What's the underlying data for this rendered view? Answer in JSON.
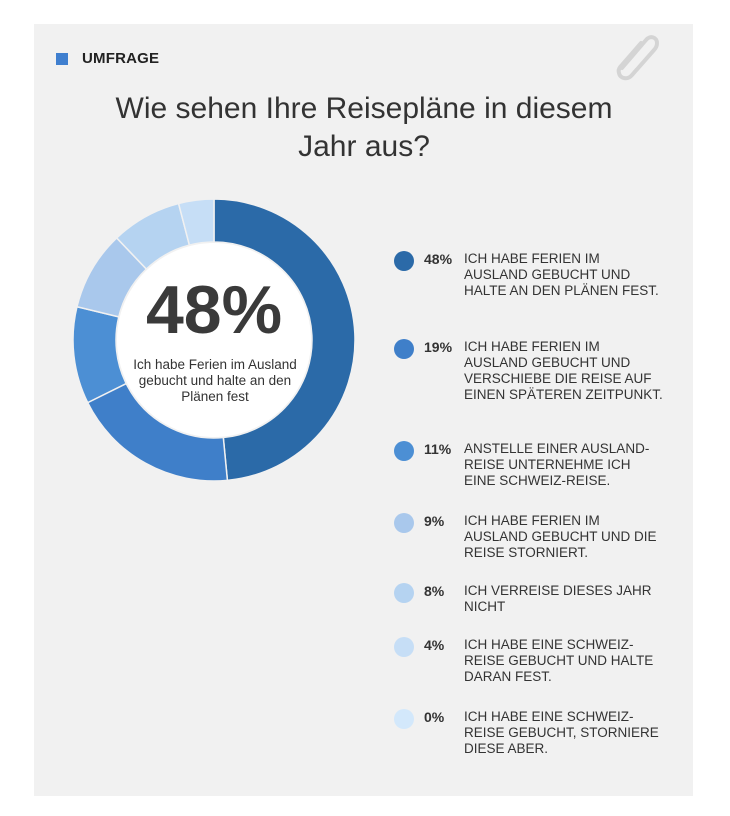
{
  "header": {
    "tag": "UMFRAGE",
    "title_line1": "Wie sehen Ihre Reisepläne in diesem",
    "title_line2": "Jahr aus?",
    "tag_color": "#3f7fcf"
  },
  "center": {
    "value": "48%",
    "caption": "Ich habe Ferien im Ausland gebucht und halte an den Plänen fest"
  },
  "chart_data": {
    "type": "pie",
    "title": "Wie sehen Ihre Reisepläne in diesem Jahr aus?",
    "slices": [
      {
        "value": 48,
        "label": "48%",
        "text": "ICH HABE FERIEN IM AUSLAND GEBUCHT UND HALTE AN DEN PLÄNEN FEST.",
        "color": "#2b6aa8"
      },
      {
        "value": 19,
        "label": "19%",
        "text": "ICH HABE FERIEN IM AUSLAND GEBUCHT UND VERSCHIEBE DIE REISE AUF EINEN SPÄTEREN ZEITPUNKT.",
        "color": "#3f7fc9"
      },
      {
        "value": 11,
        "label": "11%",
        "text": "ANSTELLE EINER AUSLAND-REISE UNTERNEHME ICH EINE SCHWEIZ-REISE.",
        "color": "#4c8fd4"
      },
      {
        "value": 9,
        "label": "9%",
        "text": "ICH HABE FERIEN IM AUSLAND GEBUCHT UND DIE REISE STORNIERT.",
        "color": "#a9c8ec"
      },
      {
        "value": 8,
        "label": "8%",
        "text": "ICH VERREISE DIESES JAHR NICHT",
        "color": "#b5d3f1"
      },
      {
        "value": 4,
        "label": "4%",
        "text": "ICH HABE EINE SCHWEIZ-REISE GEBUCHT UND HALTE DARAN FEST.",
        "color": "#c6def6"
      },
      {
        "value": 0,
        "label": "0%",
        "text": "ICH HABE EINE SCHWEIZ-REISE GEBUCHT, STORNIERE DIESE ABER.",
        "color": "#d3e8fb"
      }
    ]
  }
}
